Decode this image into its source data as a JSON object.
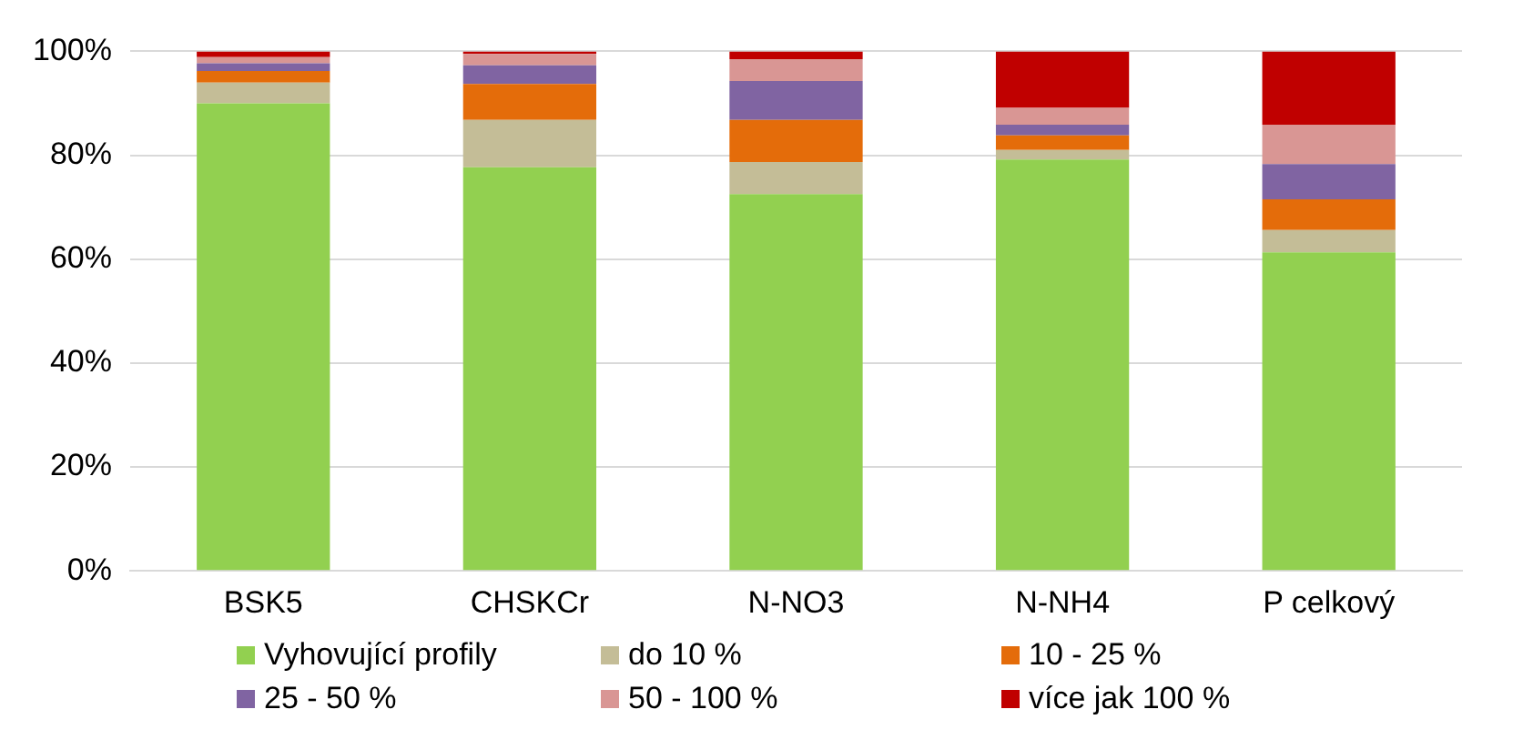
{
  "chart_data": {
    "type": "bar",
    "stacked": true,
    "categories": [
      "BSK5",
      "CHSKCr",
      "N-NO3",
      "N-NH4",
      "P celkový"
    ],
    "series": [
      {
        "name": "Vyhovující profily",
        "color": "#92d050",
        "values": [
          90,
          77.7,
          72.5,
          79.2,
          61.3
        ]
      },
      {
        "name": "do 10 %",
        "color": "#c4bd97",
        "values": [
          4,
          9.1,
          6.2,
          1.8,
          4.3
        ]
      },
      {
        "name": "10 - 25 %",
        "color": "#e46c0a",
        "values": [
          2.2,
          6.9,
          8.1,
          2.8,
          5.9
        ]
      },
      {
        "name": "25 - 50 %",
        "color": "#8064a2",
        "values": [
          1.5,
          3.6,
          7.5,
          2.1,
          6.8
        ]
      },
      {
        "name": "50 - 100 %",
        "color": "#d99694",
        "values": [
          1.2,
          2.2,
          4.2,
          3.2,
          7.6
        ]
      },
      {
        "name": "více jak 100 %",
        "color": "#c00000",
        "values": [
          1.1,
          0.5,
          1.5,
          10.9,
          14.1
        ]
      }
    ],
    "ylim": [
      0,
      100
    ],
    "yticks": [
      {
        "value": 0,
        "label": "0%"
      },
      {
        "value": 20,
        "label": "20%"
      },
      {
        "value": 40,
        "label": "40%"
      },
      {
        "value": 60,
        "label": "60%"
      },
      {
        "value": 80,
        "label": "80%"
      },
      {
        "value": 100,
        "label": "100%"
      }
    ],
    "grid": "y",
    "legend": "bottom"
  }
}
